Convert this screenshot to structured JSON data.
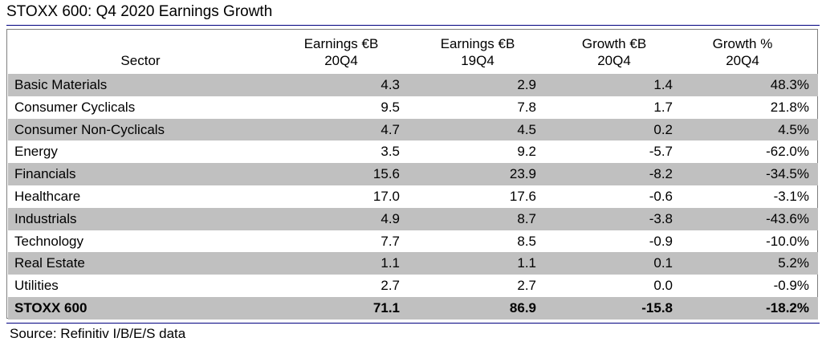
{
  "title": "STOXX 600: Q4 2020 Earnings Growth",
  "source": "Source: Refinitiv I/B/E/S data",
  "chart_data": {
    "type": "table",
    "title": "STOXX 600: Q4 2020 Earnings Growth",
    "columns": [
      {
        "key": "sector",
        "lines": [
          "Sector"
        ]
      },
      {
        "key": "earnings_20q4",
        "lines": [
          "Earnings €B",
          "20Q4"
        ]
      },
      {
        "key": "earnings_19q4",
        "lines": [
          "Earnings €B",
          "19Q4"
        ]
      },
      {
        "key": "growth_eur",
        "lines": [
          "Growth €B",
          "20Q4"
        ]
      },
      {
        "key": "growth_pct",
        "lines": [
          "Growth %",
          "20Q4"
        ]
      }
    ],
    "rows": [
      {
        "sector": "Basic Materials",
        "earnings_20q4": "4.3",
        "earnings_19q4": "2.9",
        "growth_eur": "1.4",
        "growth_pct": "48.3%"
      },
      {
        "sector": "Consumer Cyclicals",
        "earnings_20q4": "9.5",
        "earnings_19q4": "7.8",
        "growth_eur": "1.7",
        "growth_pct": "21.8%"
      },
      {
        "sector": "Consumer Non-Cyclicals",
        "earnings_20q4": "4.7",
        "earnings_19q4": "4.5",
        "growth_eur": "0.2",
        "growth_pct": "4.5%"
      },
      {
        "sector": "Energy",
        "earnings_20q4": "3.5",
        "earnings_19q4": "9.2",
        "growth_eur": "-5.7",
        "growth_pct": "-62.0%"
      },
      {
        "sector": "Financials",
        "earnings_20q4": "15.6",
        "earnings_19q4": "23.9",
        "growth_eur": "-8.2",
        "growth_pct": "-34.5%"
      },
      {
        "sector": "Healthcare",
        "earnings_20q4": "17.0",
        "earnings_19q4": "17.6",
        "growth_eur": "-0.6",
        "growth_pct": "-3.1%"
      },
      {
        "sector": "Industrials",
        "earnings_20q4": "4.9",
        "earnings_19q4": "8.7",
        "growth_eur": "-3.8",
        "growth_pct": "-43.6%"
      },
      {
        "sector": "Technology",
        "earnings_20q4": "7.7",
        "earnings_19q4": "8.5",
        "growth_eur": "-0.9",
        "growth_pct": "-10.0%"
      },
      {
        "sector": "Real Estate",
        "earnings_20q4": "1.1",
        "earnings_19q4": "1.1",
        "growth_eur": "0.1",
        "growth_pct": "5.2%"
      },
      {
        "sector": "Utilities",
        "earnings_20q4": "2.7",
        "earnings_19q4": "2.7",
        "growth_eur": "0.0",
        "growth_pct": "-0.9%"
      },
      {
        "sector": "STOXX 600",
        "earnings_20q4": "71.1",
        "earnings_19q4": "86.9",
        "growth_eur": "-15.8",
        "growth_pct": "-18.2%"
      }
    ],
    "row_shade_color": "#c0c0c0",
    "rule_color": "#000080"
  }
}
